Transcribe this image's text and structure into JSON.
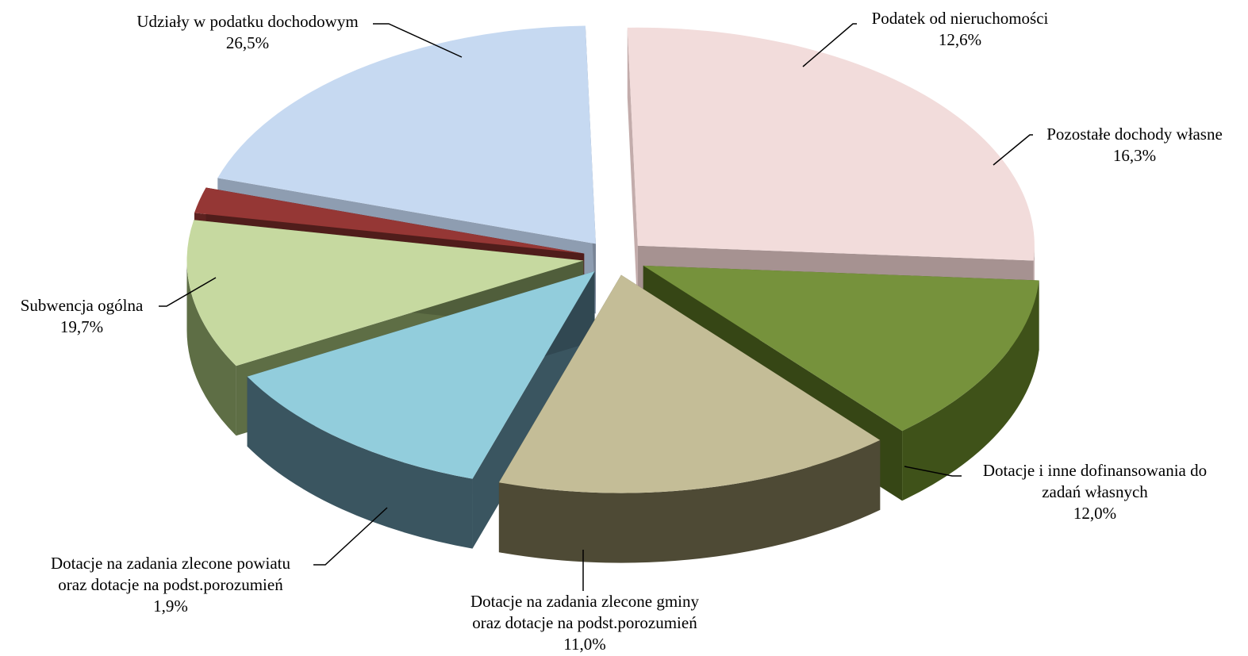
{
  "chart_data": {
    "type": "pie",
    "style": "3d-exploded",
    "slices": [
      {
        "label_lines": [
          "Udziały w podatku dochodowym"
        ],
        "value_text": "26,5%",
        "value": 26.5,
        "color": "#F2DCDB",
        "side_color": "#C3ACAB"
      },
      {
        "label_lines": [
          "Podatek od nieruchomości"
        ],
        "value_text": "12,6%",
        "value": 12.6,
        "color": "#76923C",
        "side_color": "#3F5219"
      },
      {
        "label_lines": [
          "Pozostałe dochody własne"
        ],
        "value_text": "16,3%",
        "value": 16.3,
        "color": "#C4BD97",
        "side_color": "#4E4A35"
      },
      {
        "label_lines": [
          "Dotacje i inne dofinansowania do",
          "zadań własnych"
        ],
        "value_text": "12,0%",
        "value": 12.0,
        "color": "#92CDDC",
        "side_color": "#3A5560"
      },
      {
        "label_lines": [
          "Dotacje na zadania zlecone gminy",
          "oraz dotacje na podst.porozumień"
        ],
        "value_text": "11,0%",
        "value": 11.0,
        "color": "#C6D9A0",
        "side_color": "#5E6E45"
      },
      {
        "label_lines": [
          "Dotacje na zadania zlecone powiatu",
          "oraz dotacje na podst.porozumień"
        ],
        "value_text": "1,9%",
        "value": 1.9,
        "color": "#953735",
        "side_color": "#5E2220"
      },
      {
        "label_lines": [
          "Subwencja ogólna"
        ],
        "value_text": "19,7%",
        "value": 19.7,
        "color": "#C6D9F1",
        "side_color": "#8E9DB1"
      }
    ]
  }
}
